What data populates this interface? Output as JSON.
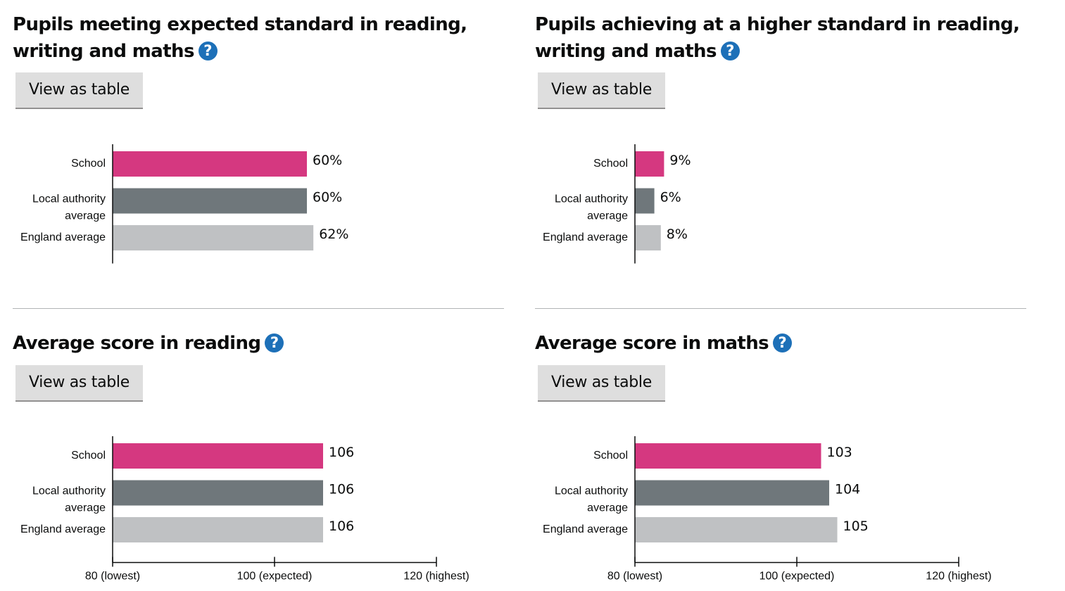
{
  "panels": [
    {
      "title": "Pupils meeting expected standard in reading, writing and maths",
      "help_label": "?",
      "button_label": "View as table"
    },
    {
      "title": "Pupils achieving at a higher standard in reading, writing and maths",
      "help_label": "?",
      "button_label": "View as table"
    },
    {
      "title": "Average score in reading",
      "help_label": "?",
      "button_label": "View as table"
    },
    {
      "title": "Average score in maths",
      "help_label": "?",
      "button_label": "View as table"
    }
  ],
  "colors": {
    "school": "#d53880",
    "local_authority": "#6f777b",
    "england": "#bfc1c3",
    "help": "#1d70b8",
    "button": "#dedede"
  },
  "chart_data": [
    {
      "type": "bar",
      "orientation": "horizontal",
      "title": "Pupils meeting expected standard in reading, writing and maths",
      "categories": [
        [
          "School"
        ],
        [
          "Local authority",
          "average"
        ],
        [
          "England average"
        ]
      ],
      "values": [
        60,
        60,
        62
      ],
      "value_labels": [
        "60%",
        "60%",
        "62%"
      ],
      "xlim": [
        0,
        100
      ],
      "ticks": []
    },
    {
      "type": "bar",
      "orientation": "horizontal",
      "title": "Pupils achieving at a higher standard in reading, writing and maths",
      "categories": [
        [
          "School"
        ],
        [
          "Local authority",
          "average"
        ],
        [
          "England average"
        ]
      ],
      "values": [
        9,
        6,
        8
      ],
      "value_labels": [
        "9%",
        "6%",
        "8%"
      ],
      "xlim": [
        0,
        100
      ],
      "ticks": []
    },
    {
      "type": "bar",
      "orientation": "horizontal",
      "title": "Average score in reading",
      "categories": [
        [
          "School"
        ],
        [
          "Local authority",
          "average"
        ],
        [
          "England average"
        ]
      ],
      "values": [
        106,
        106,
        106
      ],
      "value_labels": [
        "106",
        "106",
        "106"
      ],
      "xlim": [
        80,
        120
      ],
      "ticks": [
        {
          "value": 80,
          "label": "80 (lowest)"
        },
        {
          "value": 100,
          "label": "100 (expected)"
        },
        {
          "value": 120,
          "label": "120 (highest)"
        }
      ]
    },
    {
      "type": "bar",
      "orientation": "horizontal",
      "title": "Average score in maths",
      "categories": [
        [
          "School"
        ],
        [
          "Local authority",
          "average"
        ],
        [
          "England average"
        ]
      ],
      "values": [
        103,
        104,
        105
      ],
      "value_labels": [
        "103",
        "104",
        "105"
      ],
      "xlim": [
        80,
        120
      ],
      "ticks": [
        {
          "value": 80,
          "label": "80 (lowest)"
        },
        {
          "value": 100,
          "label": "100 (expected)"
        },
        {
          "value": 120,
          "label": "120 (highest)"
        }
      ]
    }
  ]
}
